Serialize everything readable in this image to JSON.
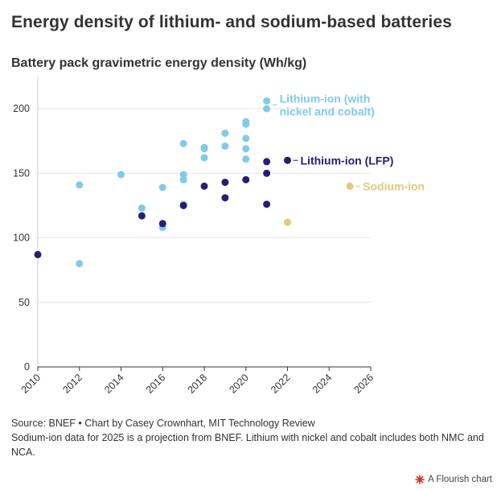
{
  "title": "Energy density of lithium- and sodium-based batteries",
  "subtitle": "Battery pack gravimetric energy density (Wh/kg)",
  "footer": {
    "source": "Source: BNEF • Chart by Casey Crownhart, MIT Technology Review",
    "note": "Sodium-ion data for 2025 is a projection from BNEF. Lithium with nickel and cobalt includes both NMC and NCA."
  },
  "credit": {
    "label": "A Flourish chart",
    "icon": "flourish-logo-icon",
    "icon_color": "#e0261b"
  },
  "chart_data": {
    "type": "scatter",
    "xlim": [
      2010,
      2026
    ],
    "ylim": [
      0,
      225
    ],
    "x_ticks": [
      2010,
      2012,
      2014,
      2016,
      2018,
      2020,
      2022,
      2024,
      2026
    ],
    "y_ticks": [
      0,
      50,
      100,
      150,
      200
    ],
    "grid": "horizontal",
    "legend": "direct labels at right",
    "series": [
      {
        "name": "Lithium-ion (with nickel and cobalt)",
        "label_lines": [
          "Lithium-ion (with",
          "nickel and cobalt)"
        ],
        "color": "#7fcbea",
        "points": [
          [
            2012,
            141
          ],
          [
            2012,
            80
          ],
          [
            2014,
            149
          ],
          [
            2015,
            123
          ],
          [
            2016,
            139
          ],
          [
            2016,
            108
          ],
          [
            2017,
            173
          ],
          [
            2017,
            149
          ],
          [
            2017,
            145
          ],
          [
            2017,
            126
          ],
          [
            2018,
            170
          ],
          [
            2018,
            169
          ],
          [
            2018,
            162
          ],
          [
            2019,
            181
          ],
          [
            2019,
            171
          ],
          [
            2020,
            190
          ],
          [
            2020,
            188
          ],
          [
            2020,
            177
          ],
          [
            2020,
            169
          ],
          [
            2020,
            161
          ],
          [
            2021,
            206
          ],
          [
            2021,
            200
          ]
        ]
      },
      {
        "name": "Lithium-ion (LFP)",
        "label_lines": [
          "Lithium-ion (LFP)"
        ],
        "color": "#2a1c72",
        "points": [
          [
            2010,
            87
          ],
          [
            2015,
            117
          ],
          [
            2016,
            111
          ],
          [
            2017,
            125
          ],
          [
            2018,
            140
          ],
          [
            2019,
            143
          ],
          [
            2019,
            131
          ],
          [
            2020,
            145
          ],
          [
            2021,
            159
          ],
          [
            2021,
            150
          ],
          [
            2021,
            126
          ],
          [
            2022,
            160
          ]
        ]
      },
      {
        "name": "Sodium-ion",
        "label_lines": [
          "Sodium-ion"
        ],
        "color": "#e3c97a",
        "points": [
          [
            2022,
            112
          ],
          [
            2025,
            140
          ]
        ]
      }
    ]
  }
}
